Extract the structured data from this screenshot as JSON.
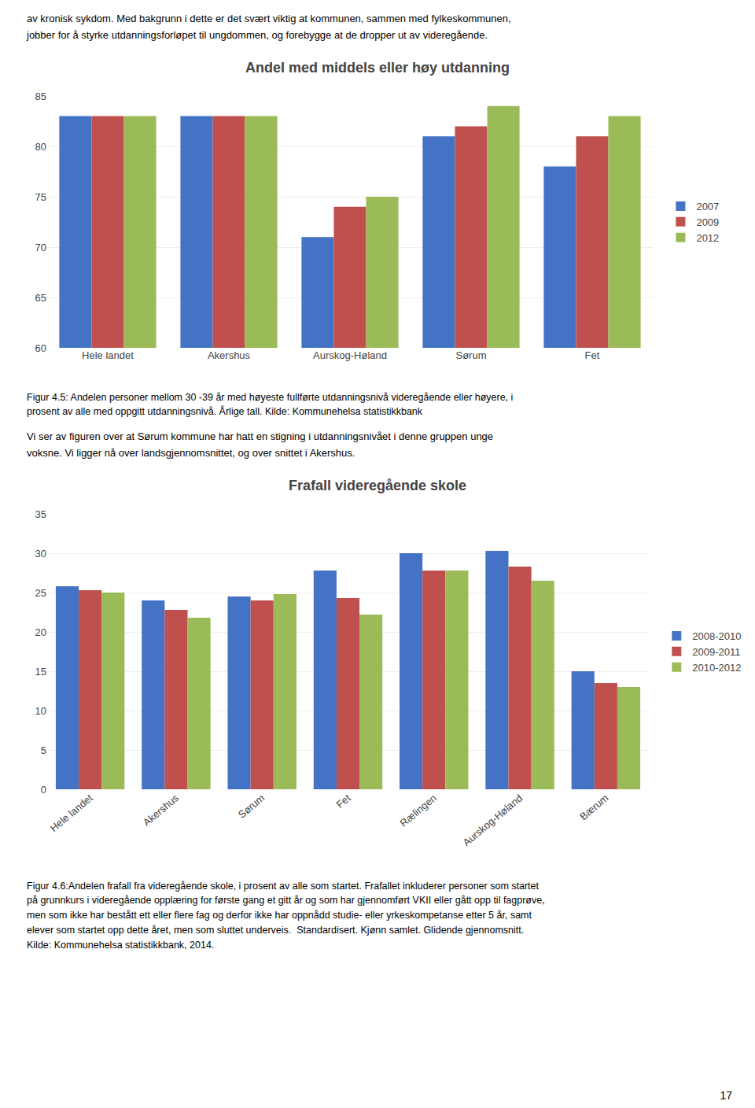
{
  "chart_data": [
    {
      "type": "bar",
      "title": "Andel med middels eller høy utdanning",
      "categories": [
        "Hele landet",
        "Akershus",
        "Aurskog-Høland",
        "Sørum",
        "Fet"
      ],
      "series": [
        {
          "name": "2007",
          "color": "#4472C4",
          "values": [
            83,
            83,
            71,
            81,
            78
          ]
        },
        {
          "name": "2009",
          "color": "#C0504D",
          "values": [
            83,
            83,
            74,
            82,
            81
          ]
        },
        {
          "name": "2012",
          "color": "#9BBB59",
          "values": [
            83,
            83,
            75,
            84,
            83
          ]
        }
      ],
      "ylim": [
        60,
        85
      ],
      "yticks": [
        60,
        65,
        70,
        75,
        80,
        85
      ],
      "grid": true,
      "legend": "right",
      "annotations": [
        "av kronisk sykdom. Med bakgrunn i dette er det svært viktig at kommunen, sammen med fylkeskommunen,\njobber for å styrke utdanningsforløpet til ungdommen, og forebygge at de dropper ut av videregående.",
        "Figur 4.5: Andelen personer mellom 30 -39 år med høyeste fullførte utdanningsnivå videregående eller høyere, i\nprosent av alle med oppgitt utdanningsnivå. Årlige tall. Kilde: Kommunehelsa statistikkbank",
        "Vi ser av figuren over at Sørum kommune har hatt en stigning i utdanningsnivået i denne gruppen unge\nvoksne. Vi ligger nå over landsgjennomsnittet, og over snittet i Akershus."
      ]
    },
    {
      "type": "bar",
      "title": "Frafall videregående skole",
      "categories": [
        "Hele landet",
        "Akershus",
        "Sørum",
        "Fet",
        "Rælingen",
        "Aurskog-Høland",
        "Bærum"
      ],
      "series": [
        {
          "name": "2008-2010",
          "color": "#4472C4",
          "values": [
            25.8,
            24.0,
            24.5,
            27.8,
            30.0,
            30.3,
            15.0
          ]
        },
        {
          "name": "2009-2011",
          "color": "#C0504D",
          "values": [
            25.3,
            22.8,
            24.0,
            24.3,
            27.8,
            28.3,
            13.5
          ]
        },
        {
          "name": "2010-2012",
          "color": "#9BBB59",
          "values": [
            25.0,
            21.8,
            24.8,
            22.2,
            27.8,
            26.5,
            13.0
          ]
        }
      ],
      "ylim": [
        0,
        35
      ],
      "yticks": [
        0,
        5,
        10,
        15,
        20,
        25,
        30,
        35
      ],
      "grid": true,
      "legend": "right",
      "annotations": [
        "Figur 4.6:Andelen frafall fra videregående skole, i prosent av alle som startet. Frafallet inkluderer personer som startet\npå grunnkurs i videregående opplæring for første gang et gitt år og som har gjennomført VKII eller gått opp til fagprøve,\nmen som ikke har bestått ett eller flere fag og derfor ikke har oppnådd studie- eller yrkeskompetanse etter 5 år, samt\nelever som startet opp dette året, men som sluttet underveis.  Standardisert. Kjønn samlet. Glidende gjennomsnitt.\nKilde: Kommunehelsa statistikkbank, 2014.",
        "17"
      ]
    }
  ]
}
